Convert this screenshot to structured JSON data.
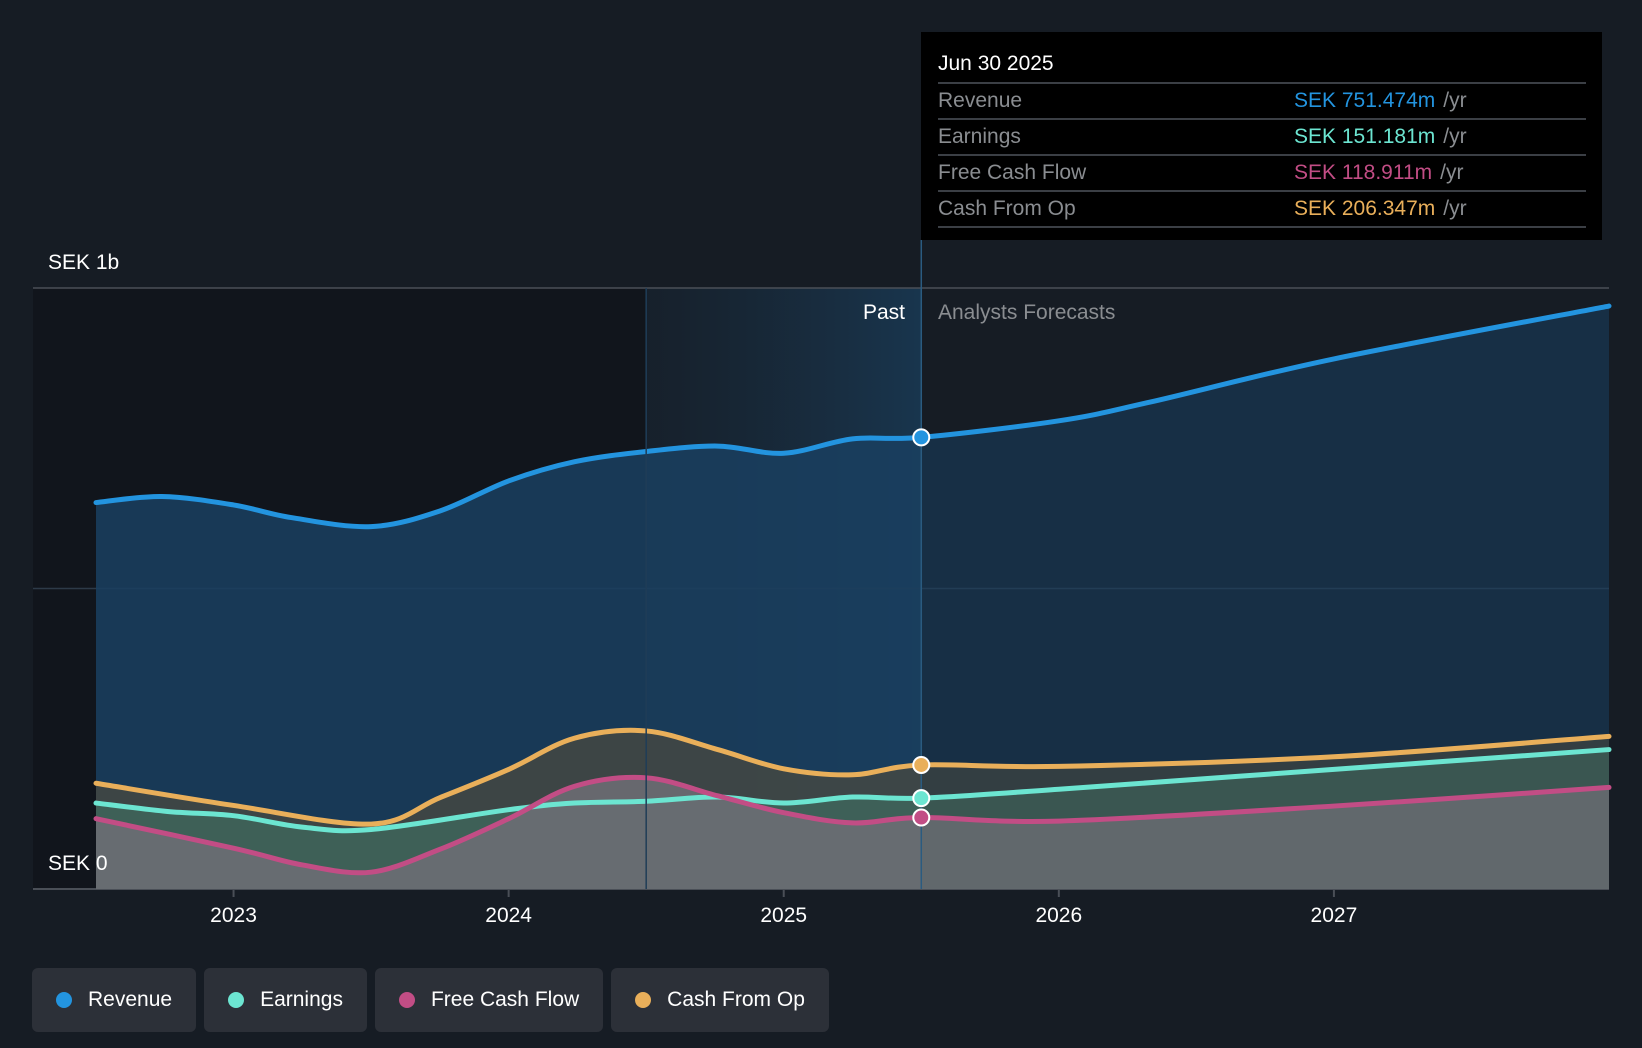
{
  "tooltip": {
    "date": "Jun 30 2025",
    "rows": [
      {
        "label": "Revenue",
        "value": "SEK 751.474m",
        "unit": "/yr",
        "color": "#2394df"
      },
      {
        "label": "Earnings",
        "value": "SEK 151.181m",
        "unit": "/yr",
        "color": "#6ce5d1"
      },
      {
        "label": "Free Cash Flow",
        "value": "SEK 118.911m",
        "unit": "/yr",
        "color": "#c24d85"
      },
      {
        "label": "Cash From Op",
        "value": "SEK 206.347m",
        "unit": "/yr",
        "color": "#e9af5a"
      }
    ]
  },
  "regions": {
    "past": "Past",
    "forecast": "Analysts Forecasts"
  },
  "legend": [
    {
      "label": "Revenue",
      "color": "#2394df"
    },
    {
      "label": "Earnings",
      "color": "#6ce5d1"
    },
    {
      "label": "Free Cash Flow",
      "color": "#c24d85"
    },
    {
      "label": "Cash From Op",
      "color": "#e9af5a"
    }
  ],
  "chart_data": {
    "type": "area",
    "title": "",
    "xlabel": "",
    "ylabel": "",
    "currency": "SEK",
    "unit": "millions",
    "xlim": [
      2022.5,
      2028.0
    ],
    "ylim": [
      0,
      1000
    ],
    "y_ticks": [
      {
        "value": 0,
        "label": "SEK 0"
      },
      {
        "value": 500,
        "label": ""
      },
      {
        "value": 1000,
        "label": "SEK 1b"
      }
    ],
    "x_ticks": [
      {
        "value": 2023,
        "label": "2023"
      },
      {
        "value": 2024,
        "label": "2024"
      },
      {
        "value": 2025,
        "label": "2025"
      },
      {
        "value": 2026,
        "label": "2026"
      },
      {
        "value": 2027,
        "label": "2027"
      }
    ],
    "past_forecast_split": 2025.5,
    "highlight_start": 2024.5,
    "grid": true,
    "legend_position": "bottom-left",
    "series": [
      {
        "name": "Revenue",
        "color": "#2394df",
        "x": [
          2022.5,
          2022.74,
          2023.0,
          2023.21,
          2023.5,
          2023.75,
          2024.0,
          2024.24,
          2024.5,
          2024.76,
          2025.0,
          2025.25,
          2025.5,
          2026.0,
          2026.33,
          2027.0,
          2028.0
        ],
        "y": [
          643,
          653,
          639,
          618,
          603,
          629,
          679,
          711,
          728,
          737,
          725,
          749,
          751.474,
          779,
          810,
          882,
          970
        ]
      },
      {
        "name": "Earnings",
        "color": "#6ce5d1",
        "x": [
          2022.5,
          2022.76,
          2023.0,
          2023.25,
          2023.5,
          2024.0,
          2024.24,
          2024.5,
          2024.76,
          2025.0,
          2025.25,
          2025.5,
          2026.0,
          2027.0,
          2028.0
        ],
        "y": [
          143,
          129,
          122,
          103,
          99,
          132,
          143,
          146,
          153,
          143,
          153,
          151.181,
          166,
          199,
          232
        ]
      },
      {
        "name": "Free Cash Flow",
        "color": "#c24d85",
        "x": [
          2022.5,
          2023.0,
          2023.25,
          2023.5,
          2023.75,
          2024.0,
          2024.24,
          2024.5,
          2024.76,
          2025.0,
          2025.25,
          2025.5,
          2026.0,
          2027.0,
          2028.0
        ],
        "y": [
          117,
          68,
          40,
          28,
          66,
          117,
          171,
          185,
          155,
          127,
          110,
          118.911,
          113,
          138,
          169
        ]
      },
      {
        "name": "Cash From Op",
        "color": "#e9af5a",
        "x": [
          2022.5,
          2023.0,
          2023.5,
          2023.75,
          2024.0,
          2024.24,
          2024.5,
          2024.76,
          2025.0,
          2025.25,
          2025.5,
          2026.0,
          2027.0,
          2028.0
        ],
        "y": [
          176,
          139,
          108,
          152,
          199,
          251,
          263,
          232,
          200,
          190,
          206.347,
          204,
          220,
          254
        ]
      }
    ]
  }
}
